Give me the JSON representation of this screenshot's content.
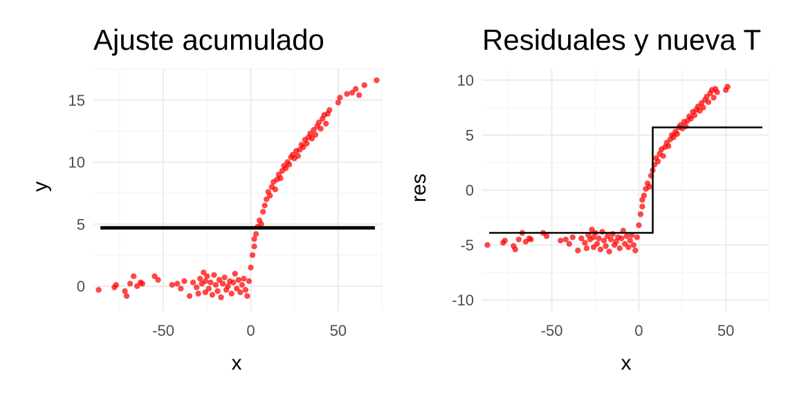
{
  "chart_data": [
    {
      "type": "scatter",
      "title": "Ajuste acumulado",
      "xlabel": "x",
      "ylabel": "y",
      "xlim": [
        -90,
        75
      ],
      "ylim": [
        -2,
        17.5
      ],
      "xticks": [
        -50,
        0,
        50
      ],
      "yticks": [
        0,
        5,
        10,
        15
      ],
      "xtick_labels": [
        "-50",
        "0",
        "50"
      ],
      "ytick_labels": [
        "0",
        "5",
        "10",
        "15"
      ],
      "grid": true,
      "point_color": "#ff0000",
      "line_color": "#000000",
      "series": [
        {
          "kind": "points",
          "x": [
            -87,
            -78,
            -77,
            -72,
            -71,
            -69,
            -67,
            -65,
            -63,
            -62,
            -55,
            -53,
            -45,
            -42,
            -40,
            -38,
            -35,
            -33,
            -31,
            -30,
            -29,
            -28,
            -27,
            -26,
            -26,
            -25,
            -24,
            -23,
            -22,
            -21,
            -20,
            -19,
            -18,
            -17,
            -16,
            -15,
            -14,
            -13,
            -12,
            -11,
            -10,
            -9,
            -8,
            -7,
            -6,
            -5,
            -4,
            -3,
            -2,
            -1,
            0,
            1,
            2,
            2,
            3,
            4,
            5,
            6,
            7,
            8,
            9,
            10,
            11,
            12,
            13,
            14,
            15,
            16,
            17,
            18,
            19,
            20,
            21,
            22,
            23,
            24,
            25,
            26,
            27,
            28,
            29,
            30,
            31,
            32,
            33,
            34,
            35,
            36,
            37,
            38,
            39,
            40,
            41,
            42,
            43,
            44,
            45,
            50,
            51,
            55,
            58,
            60,
            62,
            65,
            72
          ],
          "y": [
            -0.3,
            -0.1,
            0.1,
            -0.4,
            -0.8,
            0.2,
            0.8,
            0.0,
            0.3,
            0.2,
            0.8,
            0.5,
            0.1,
            0.2,
            -0.2,
            0.4,
            -0.8,
            0.3,
            -0.1,
            -0.6,
            0.6,
            0.2,
            1.1,
            -0.5,
            0.4,
            0.8,
            -0.2,
            0.3,
            -0.7,
            0.9,
            0.1,
            -0.4,
            0.5,
            -0.9,
            0.2,
            0.7,
            -0.3,
            0.0,
            0.4,
            -0.6,
            0.3,
            1.0,
            -0.2,
            0.5,
            -0.5,
            0.1,
            0.6,
            -0.3,
            -0.8,
            0.4,
            1.5,
            2.5,
            3.2,
            3.8,
            4.2,
            4.8,
            5.3,
            5.0,
            6.0,
            6.5,
            7.0,
            7.6,
            7.3,
            8.0,
            8.4,
            7.8,
            8.6,
            9.0,
            8.7,
            9.3,
            9.7,
            9.5,
            10.0,
            9.8,
            10.4,
            10.6,
            10.3,
            10.9,
            10.5,
            11.0,
            11.4,
            11.2,
            11.8,
            11.5,
            12.0,
            12.3,
            11.9,
            12.6,
            12.2,
            12.9,
            13.2,
            12.7,
            13.5,
            13.8,
            13.1,
            13.9,
            14.2,
            14.8,
            15.2,
            15.5,
            15.6,
            15.9,
            15.4,
            16.2,
            16.6
          ]
        },
        {
          "kind": "line",
          "x": [
            -86,
            71
          ],
          "y": [
            4.7,
            4.7
          ]
        }
      ]
    },
    {
      "type": "scatter",
      "title": "Residuales y nueva T",
      "xlabel": "x",
      "ylabel": "res",
      "xlim": [
        -90,
        75
      ],
      "ylim": [
        -11,
        11
      ],
      "xticks": [
        -50,
        0,
        50
      ],
      "yticks": [
        -10,
        -5,
        0,
        5,
        10
      ],
      "xtick_labels": [
        "-50",
        "0",
        "50"
      ],
      "ytick_labels": [
        "-10",
        "-5",
        "0",
        "5",
        "10"
      ],
      "grid": true,
      "point_color": "#ff0000",
      "line_color": "#000000",
      "series": [
        {
          "kind": "points",
          "x": [
            -87,
            -78,
            -77,
            -72,
            -71,
            -69,
            -67,
            -65,
            -63,
            -62,
            -55,
            -53,
            -45,
            -42,
            -40,
            -38,
            -35,
            -33,
            -31,
            -30,
            -29,
            -28,
            -27,
            -26,
            -26,
            -25,
            -24,
            -23,
            -22,
            -21,
            -20,
            -19,
            -18,
            -17,
            -16,
            -15,
            -14,
            -13,
            -12,
            -11,
            -10,
            -9,
            -8,
            -7,
            -6,
            -5,
            -4,
            -3,
            -2,
            -1,
            0,
            1,
            2,
            2,
            3,
            4,
            5,
            6,
            7,
            8,
            9,
            10,
            11,
            12,
            13,
            14,
            15,
            16,
            17,
            18,
            19,
            20,
            21,
            22,
            23,
            24,
            25,
            26,
            27,
            28,
            29,
            30,
            31,
            32,
            33,
            34,
            35,
            36,
            37,
            38,
            39,
            40,
            41,
            42,
            43,
            44,
            45,
            50,
            51
          ],
          "y": [
            -5.0,
            -4.8,
            -4.6,
            -5.1,
            -5.4,
            -4.5,
            -3.9,
            -4.7,
            -4.4,
            -4.5,
            -3.9,
            -4.2,
            -4.6,
            -4.5,
            -4.9,
            -4.3,
            -5.5,
            -4.4,
            -4.8,
            -5.3,
            -4.1,
            -4.5,
            -3.6,
            -5.2,
            -4.3,
            -3.9,
            -4.9,
            -4.4,
            -5.4,
            -3.8,
            -4.6,
            -5.1,
            -4.2,
            -5.6,
            -4.5,
            -4.0,
            -5.0,
            -4.7,
            -4.3,
            -5.3,
            -4.4,
            -3.7,
            -4.9,
            -4.2,
            -5.2,
            -4.6,
            -4.1,
            -5.0,
            -5.5,
            -4.3,
            -3.2,
            -2.2,
            -1.5,
            -0.9,
            -0.5,
            0.1,
            0.6,
            0.3,
            1.3,
            1.8,
            2.3,
            2.9,
            2.6,
            3.3,
            3.7,
            3.1,
            3.9,
            4.3,
            4.0,
            4.6,
            5.0,
            4.8,
            5.3,
            5.1,
            5.7,
            5.9,
            5.6,
            6.2,
            5.8,
            6.3,
            6.7,
            6.5,
            7.1,
            6.8,
            7.3,
            7.6,
            7.2,
            7.9,
            7.5,
            8.2,
            8.5,
            8.0,
            8.8,
            9.1,
            8.4,
            9.2,
            8.9,
            9.1,
            9.4
          ]
        },
        {
          "kind": "step",
          "x": [
            -86,
            8,
            8,
            71
          ],
          "y": [
            -3.9,
            -3.9,
            5.7,
            5.7
          ]
        }
      ]
    }
  ]
}
